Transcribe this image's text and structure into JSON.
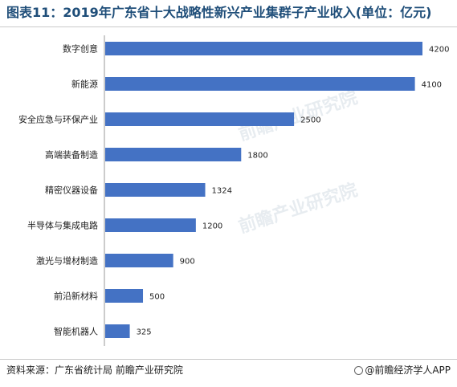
{
  "title": "图表11：2019年广东省十大战略性新兴产业集群子产业收入(单位：亿元)",
  "source": "资料来源：广东省统计局 前瞻产业研究院",
  "brand": "@前瞻经济学人APP",
  "watermark": "前瞻产业研究院",
  "colors": {
    "bar": "#4472c4",
    "title": "#1f4e79"
  },
  "chart_data": {
    "type": "bar",
    "orientation": "horizontal",
    "categories": [
      "数字创意",
      "新能源",
      "安全应急与环保产业",
      "高端装备制造",
      "精密仪器设备",
      "半导体与集成电路",
      "激光与增材制造",
      "前沿新材料",
      "智能机器人"
    ],
    "values": [
      4200,
      4100,
      2500,
      1800,
      1324,
      1200,
      900,
      500,
      325
    ],
    "value_labels": [
      "4200",
      "4100",
      "2500",
      "1800",
      "1324",
      "1200",
      "900",
      "500",
      "325"
    ],
    "xlim": [
      0,
      4200
    ],
    "grid": false,
    "legend": "none"
  }
}
